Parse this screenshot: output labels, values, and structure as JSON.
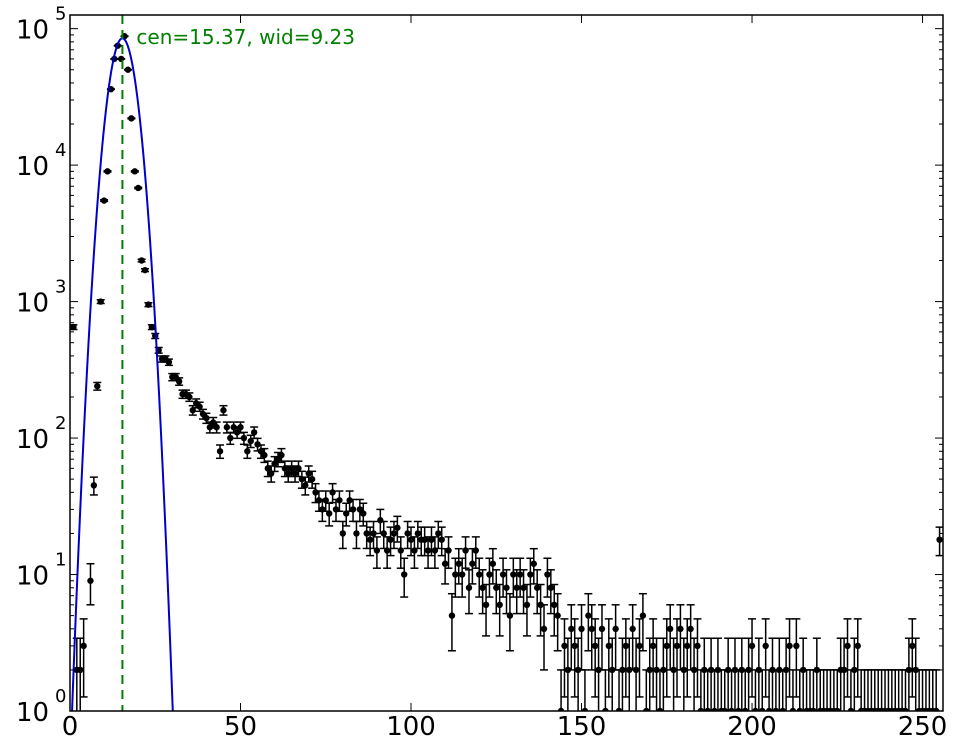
{
  "chart_data": {
    "type": "scatter",
    "xlim": [
      0,
      256
    ],
    "ylim_log10": [
      0,
      5.1
    ],
    "yscale": "log",
    "grid": false,
    "legend": "none",
    "x_ticks": [
      {
        "value": 0,
        "label": "0"
      },
      {
        "value": 50,
        "label": "50"
      },
      {
        "value": 100,
        "label": "100"
      },
      {
        "value": 150,
        "label": "150"
      },
      {
        "value": 200,
        "label": "200"
      },
      {
        "value": 250,
        "label": "250"
      }
    ],
    "y_ticks": [
      {
        "exp": 0,
        "base": "10",
        "sup": "0"
      },
      {
        "exp": 1,
        "base": "10",
        "sup": "1"
      },
      {
        "exp": 2,
        "base": "10",
        "sup": "2"
      },
      {
        "exp": 3,
        "base": "10",
        "sup": "3"
      },
      {
        "exp": 4,
        "base": "10",
        "sup": "4"
      },
      {
        "exp": 5,
        "base": "10",
        "sup": "5"
      }
    ],
    "annotation": {
      "text": "cen=15.37, wid=9.23",
      "x": 15.37,
      "color": "#008000"
    },
    "fit": {
      "type": "gaussian",
      "center": 15.37,
      "sigma": 3.1,
      "amplitude": 85000,
      "color": "#0000cc"
    },
    "series": [
      {
        "color": "#000000",
        "points": [
          [
            1,
            650
          ],
          [
            2,
            2
          ],
          [
            3,
            2
          ],
          [
            4,
            3
          ],
          [
            6,
            9
          ],
          [
            7,
            45
          ],
          [
            8,
            240
          ],
          [
            9,
            1000
          ],
          [
            10,
            5500
          ],
          [
            11,
            9000
          ],
          [
            12,
            36000
          ],
          [
            13,
            60000
          ],
          [
            14,
            75000
          ],
          [
            15,
            60000
          ],
          [
            16,
            88000
          ],
          [
            17,
            50000
          ],
          [
            18,
            22000
          ],
          [
            19,
            9000
          ],
          [
            20,
            6800
          ],
          [
            21,
            2000
          ],
          [
            22,
            1700
          ],
          [
            23,
            950
          ],
          [
            24,
            650
          ],
          [
            25,
            560
          ],
          [
            26,
            440
          ],
          [
            27,
            380
          ],
          [
            28,
            380
          ],
          [
            29,
            360
          ],
          [
            30,
            280
          ],
          [
            31,
            280
          ],
          [
            32,
            260
          ],
          [
            33,
            210
          ],
          [
            34,
            210
          ],
          [
            35,
            200
          ],
          [
            36,
            160
          ],
          [
            37,
            180
          ],
          [
            38,
            170
          ],
          [
            39,
            150
          ],
          [
            40,
            140
          ],
          [
            41,
            120
          ],
          [
            42,
            130
          ],
          [
            43,
            120
          ],
          [
            44,
            80
          ],
          [
            45,
            160
          ],
          [
            46,
            120
          ],
          [
            47,
            100
          ],
          [
            48,
            120
          ],
          [
            49,
            110
          ],
          [
            50,
            120
          ],
          [
            51,
            100
          ],
          [
            52,
            80
          ],
          [
            53,
            95
          ],
          [
            54,
            110
          ],
          [
            55,
            90
          ],
          [
            56,
            80
          ],
          [
            57,
            75
          ],
          [
            58,
            60
          ],
          [
            59,
            55
          ],
          [
            60,
            65
          ],
          [
            61,
            70
          ],
          [
            62,
            75
          ],
          [
            63,
            60
          ],
          [
            64,
            55
          ],
          [
            65,
            60
          ],
          [
            66,
            55
          ],
          [
            67,
            60
          ],
          [
            68,
            50
          ],
          [
            69,
            45
          ],
          [
            70,
            55
          ],
          [
            71,
            50
          ],
          [
            72,
            40
          ],
          [
            73,
            35
          ],
          [
            74,
            30
          ],
          [
            75,
            35
          ],
          [
            76,
            28
          ],
          [
            77,
            40
          ],
          [
            78,
            30
          ],
          [
            79,
            35
          ],
          [
            80,
            20
          ],
          [
            81,
            28
          ],
          [
            82,
            35
          ],
          [
            83,
            30
          ],
          [
            84,
            20
          ],
          [
            85,
            30
          ],
          [
            86,
            28
          ],
          [
            87,
            20
          ],
          [
            88,
            18
          ],
          [
            89,
            20
          ],
          [
            90,
            15
          ],
          [
            91,
            25
          ],
          [
            92,
            20
          ],
          [
            93,
            15
          ],
          [
            94,
            18
          ],
          [
            95,
            20
          ],
          [
            96,
            22
          ],
          [
            97,
            15
          ],
          [
            98,
            10
          ],
          [
            99,
            20
          ],
          [
            100,
            18
          ],
          [
            101,
            15
          ],
          [
            102,
            20
          ],
          [
            103,
            18
          ],
          [
            104,
            18
          ],
          [
            105,
            15
          ],
          [
            106,
            18
          ],
          [
            107,
            15
          ],
          [
            108,
            20
          ],
          [
            109,
            18
          ],
          [
            110,
            12
          ],
          [
            111,
            15
          ],
          [
            112,
            5
          ],
          [
            113,
            10
          ],
          [
            114,
            12
          ],
          [
            115,
            10
          ],
          [
            116,
            15
          ],
          [
            117,
            8
          ],
          [
            118,
            12
          ],
          [
            119,
            15
          ],
          [
            120,
            10
          ],
          [
            121,
            8
          ],
          [
            122,
            6
          ],
          [
            123,
            10
          ],
          [
            124,
            12
          ],
          [
            125,
            8
          ],
          [
            126,
            6
          ],
          [
            127,
            10
          ],
          [
            128,
            8
          ],
          [
            129,
            5
          ],
          [
            130,
            10
          ],
          [
            131,
            8
          ],
          [
            132,
            10
          ],
          [
            133,
            8
          ],
          [
            134,
            6
          ],
          [
            135,
            10
          ],
          [
            136,
            12
          ],
          [
            137,
            8
          ],
          [
            138,
            6
          ],
          [
            139,
            4
          ],
          [
            140,
            10
          ],
          [
            141,
            8
          ],
          [
            142,
            6
          ],
          [
            143,
            5
          ],
          [
            144,
            1
          ],
          [
            145,
            3
          ],
          [
            146,
            2
          ],
          [
            147,
            4
          ],
          [
            148,
            3
          ],
          [
            149,
            2
          ],
          [
            150,
            4
          ],
          [
            151,
            1
          ],
          [
            152,
            5
          ],
          [
            153,
            4
          ],
          [
            154,
            3
          ],
          [
            155,
            2
          ],
          [
            156,
            4
          ],
          [
            157,
            1
          ],
          [
            158,
            3
          ],
          [
            159,
            2
          ],
          [
            160,
            4
          ],
          [
            161,
            1
          ],
          [
            162,
            2
          ],
          [
            163,
            3
          ],
          [
            164,
            2
          ],
          [
            165,
            4
          ],
          [
            166,
            2
          ],
          [
            167,
            3
          ],
          [
            168,
            5
          ],
          [
            169,
            1
          ],
          [
            170,
            2
          ],
          [
            171,
            3
          ],
          [
            172,
            2
          ],
          [
            173,
            1
          ],
          [
            174,
            2
          ],
          [
            175,
            3
          ],
          [
            176,
            4
          ],
          [
            177,
            2
          ],
          [
            178,
            3
          ],
          [
            179,
            4
          ],
          [
            180,
            2
          ],
          [
            181,
            3
          ],
          [
            182,
            4
          ],
          [
            183,
            2
          ],
          [
            184,
            3
          ],
          [
            185,
            1
          ],
          [
            186,
            2
          ],
          [
            187,
            1
          ],
          [
            188,
            2
          ],
          [
            189,
            1
          ],
          [
            190,
            2
          ],
          [
            191,
            1
          ],
          [
            192,
            1
          ],
          [
            193,
            2
          ],
          [
            194,
            1
          ],
          [
            195,
            2
          ],
          [
            196,
            1
          ],
          [
            197,
            2
          ],
          [
            198,
            1
          ],
          [
            199,
            2
          ],
          [
            200,
            3
          ],
          [
            201,
            1
          ],
          [
            202,
            2
          ],
          [
            203,
            1
          ],
          [
            204,
            3
          ],
          [
            205,
            1
          ],
          [
            206,
            2
          ],
          [
            207,
            1
          ],
          [
            208,
            2
          ],
          [
            209,
            1
          ],
          [
            210,
            2
          ],
          [
            211,
            3
          ],
          [
            212,
            1
          ],
          [
            213,
            3
          ],
          [
            214,
            1
          ],
          [
            215,
            2
          ],
          [
            216,
            1
          ],
          [
            217,
            1
          ],
          [
            218,
            1
          ],
          [
            219,
            2
          ],
          [
            220,
            1
          ],
          [
            221,
            1
          ],
          [
            222,
            1
          ],
          [
            223,
            1
          ],
          [
            224,
            1
          ],
          [
            225,
            1
          ],
          [
            226,
            2
          ],
          [
            227,
            2
          ],
          [
            228,
            3
          ],
          [
            229,
            1
          ],
          [
            230,
            2
          ],
          [
            231,
            3
          ],
          [
            232,
            1
          ],
          [
            233,
            1
          ],
          [
            234,
            1
          ],
          [
            235,
            1
          ],
          [
            236,
            1
          ],
          [
            237,
            1
          ],
          [
            238,
            1
          ],
          [
            239,
            1
          ],
          [
            240,
            1
          ],
          [
            241,
            1
          ],
          [
            242,
            1
          ],
          [
            243,
            1
          ],
          [
            244,
            1
          ],
          [
            245,
            1
          ],
          [
            246,
            2
          ],
          [
            247,
            3
          ],
          [
            248,
            2
          ],
          [
            249,
            1
          ],
          [
            250,
            1
          ],
          [
            251,
            1
          ],
          [
            252,
            1
          ],
          [
            253,
            1
          ],
          [
            254,
            1
          ],
          [
            255,
            18
          ]
        ]
      }
    ]
  }
}
